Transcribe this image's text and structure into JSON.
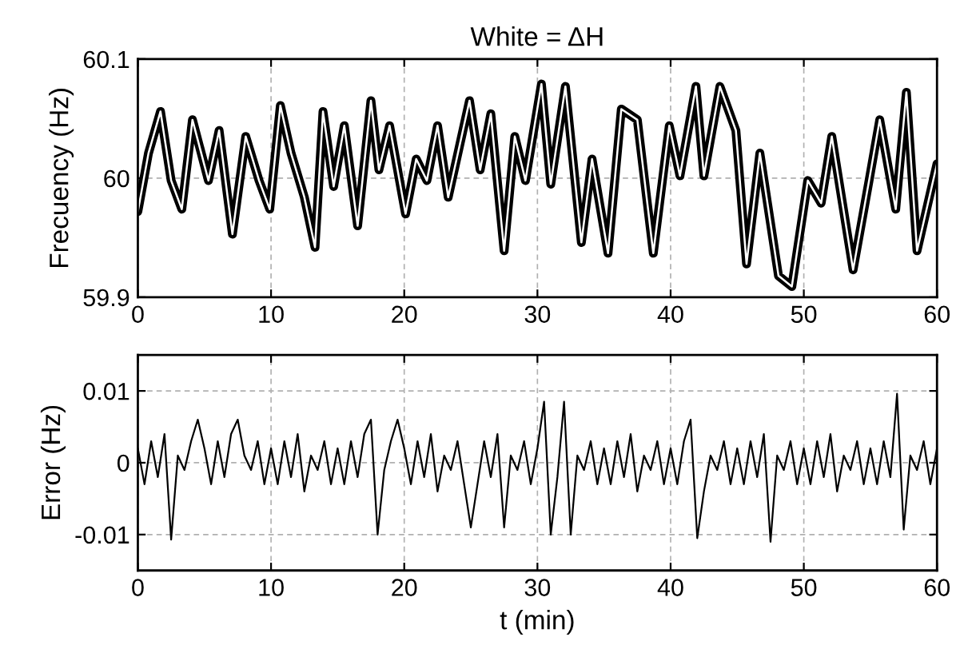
{
  "chart_data": [
    {
      "type": "line",
      "title": "White = ΔH",
      "ylabel": "Frecuency (Hz)",
      "x": [
        0,
        0.8,
        1.7,
        2.5,
        3.3,
        4.1,
        5.3,
        6.1,
        7.1,
        8.1,
        9.1,
        9.9,
        10.7,
        11.5,
        12.5,
        13.3,
        13.9,
        14.7,
        15.5,
        16.5,
        17.5,
        18.1,
        18.9,
        20.1,
        20.9,
        21.7,
        22.5,
        23.3,
        24.9,
        25.7,
        26.5,
        27.5,
        28.3,
        29.1,
        30.3,
        31.0,
        32.1,
        33.3,
        34.1,
        35.3,
        36.3,
        37.5,
        38.7,
        39.9,
        40.7,
        41.9,
        42.5,
        43.7,
        44.9,
        45.7,
        46.7,
        48.1,
        49.1,
        50.3,
        51.3,
        52.1,
        53.7,
        54.9,
        55.7,
        56.9,
        57.7,
        58.5,
        60
      ],
      "series": [
        {
          "color": "#000000",
          "values": [
            59.972,
            60.021,
            60.056,
            59.998,
            59.974,
            60.049,
            59.998,
            60.04,
            59.953,
            60.035,
            59.998,
            59.974,
            60.061,
            60.021,
            59.984,
            59.942,
            60.056,
            59.993,
            60.044,
            59.96,
            60.065,
            60.007,
            60.044,
            59.97,
            60.016,
            59.998,
            60.044,
            59.984,
            60.065,
            60.007,
            60.054,
            59.939,
            60.035,
            59.998,
            60.079,
            59.995,
            60.077,
            59.946,
            60.016,
            59.937,
            60.058,
            60.049,
            59.937,
            60.044,
            60.002,
            60.077,
            60.002,
            60.077,
            60.04,
            59.928,
            60.021,
            59.918,
            59.909,
            59.998,
            59.979,
            60.035,
            59.923,
            59.998,
            60.049,
            59.974,
            60.072,
            59.939,
            60.012
          ]
        },
        {
          "color": "#ffffff",
          "values": [
            59.972,
            60.021,
            60.056,
            59.998,
            59.974,
            60.049,
            59.998,
            60.04,
            59.953,
            60.035,
            59.998,
            59.974,
            60.061,
            60.021,
            59.984,
            59.942,
            60.056,
            59.993,
            60.044,
            59.96,
            60.065,
            60.007,
            60.044,
            59.97,
            60.016,
            59.998,
            60.044,
            59.984,
            60.065,
            60.007,
            60.054,
            59.939,
            60.035,
            59.998,
            60.079,
            59.995,
            60.077,
            59.946,
            60.016,
            59.937,
            60.058,
            60.049,
            59.937,
            60.044,
            60.002,
            60.077,
            60.002,
            60.077,
            60.04,
            59.928,
            60.021,
            59.918,
            59.909,
            59.998,
            59.979,
            60.035,
            59.923,
            59.998,
            60.049,
            59.974,
            60.072,
            59.939,
            60.012
          ]
        }
      ],
      "xlim": [
        0,
        60
      ],
      "xticks": [
        0,
        10,
        20,
        30,
        40,
        50,
        60
      ],
      "ylim": [
        59.9,
        60.1
      ],
      "yticks": [
        59.9,
        60,
        60.1
      ],
      "grid": true
    },
    {
      "type": "line",
      "xlabel": "t (min)",
      "ylabel": "Error (Hz)",
      "x": [
        0,
        0.5,
        1,
        1.5,
        2,
        2.5,
        3,
        3.5,
        4,
        4.5,
        5,
        5.5,
        6,
        6.5,
        7,
        7.5,
        8,
        8.5,
        9,
        9.5,
        10,
        10.5,
        11,
        11.5,
        12,
        12.5,
        13,
        13.5,
        14,
        14.5,
        15,
        15.5,
        16,
        16.5,
        17,
        17.5,
        18,
        18.5,
        19,
        19.5,
        20,
        20.5,
        21,
        21.5,
        22,
        22.5,
        23,
        23.5,
        24,
        24.5,
        25,
        25.5,
        26,
        26.5,
        27,
        27.5,
        28,
        28.5,
        29,
        29.5,
        30,
        30.5,
        31,
        31.5,
        32,
        32.5,
        33,
        33.5,
        34,
        34.5,
        35,
        35.5,
        36,
        36.5,
        37,
        37.5,
        38,
        38.5,
        39,
        39.5,
        40,
        40.5,
        41,
        41.5,
        42,
        42.5,
        43,
        43.5,
        44,
        44.5,
        45,
        45.5,
        46,
        46.5,
        47,
        47.5,
        48,
        48.5,
        49,
        49.5,
        50,
        50.5,
        51,
        51.5,
        52,
        52.5,
        53,
        53.5,
        54,
        54.5,
        55,
        55.5,
        56,
        56.5,
        57,
        57.5,
        58,
        58.5,
        59,
        59.5,
        60
      ],
      "series": [
        {
          "color": "#000000",
          "values": [
            0.002,
            -0.003,
            0.003,
            -0.002,
            0.004,
            -0.0107,
            0.001,
            -0.001,
            0.003,
            0.006,
            0.002,
            -0.003,
            0.003,
            -0.002,
            0.004,
            0.006,
            0.001,
            -0.001,
            0.003,
            -0.003,
            0.002,
            -0.003,
            0.003,
            -0.002,
            0.004,
            -0.004,
            0.001,
            -0.001,
            0.003,
            -0.003,
            0.002,
            -0.003,
            0.003,
            -0.002,
            0.004,
            0.006,
            -0.01,
            -0.001,
            0.003,
            0.006,
            0.002,
            -0.003,
            0.003,
            -0.002,
            0.004,
            -0.004,
            0.001,
            -0.001,
            0.003,
            -0.003,
            -0.009,
            -0.003,
            0.003,
            -0.002,
            0.004,
            -0.009,
            0.001,
            -0.001,
            0.003,
            -0.003,
            0.002,
            0.0085,
            -0.01,
            -0.002,
            0.0085,
            -0.01,
            0.001,
            -0.001,
            0.003,
            -0.003,
            0.002,
            -0.003,
            0.003,
            -0.002,
            0.004,
            -0.004,
            0.001,
            -0.001,
            0.003,
            -0.003,
            0.002,
            -0.003,
            0.003,
            0.006,
            -0.0105,
            -0.004,
            0.001,
            -0.001,
            0.003,
            -0.003,
            0.002,
            -0.003,
            0.003,
            -0.002,
            0.004,
            -0.011,
            0.001,
            -0.001,
            0.003,
            -0.003,
            0.002,
            -0.003,
            0.003,
            -0.002,
            0.004,
            -0.004,
            0.001,
            -0.001,
            0.003,
            -0.003,
            0.002,
            -0.003,
            0.003,
            -0.002,
            0.0096,
            -0.0093,
            0.001,
            -0.001,
            0.003,
            -0.003,
            0.002
          ]
        }
      ],
      "xlim": [
        0,
        60
      ],
      "xticks": [
        0,
        10,
        20,
        30,
        40,
        50,
        60
      ],
      "ylim": [
        -0.015,
        0.015
      ],
      "yticks": [
        -0.01,
        0,
        0.01
      ],
      "grid": true
    }
  ]
}
